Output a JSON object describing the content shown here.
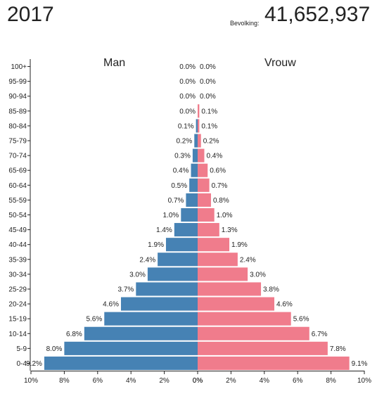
{
  "header": {
    "year": "2017",
    "population_label": "Bevolking:",
    "population_value": "41,652,937"
  },
  "colors": {
    "male": "#4682b4",
    "female": "#f07c8c",
    "axis": "#222222"
  },
  "chart_data": {
    "type": "bar",
    "orientation": "horizontal-population-pyramid",
    "categories": [
      "0-4",
      "5-9",
      "10-14",
      "15-19",
      "20-24",
      "25-29",
      "30-34",
      "35-39",
      "40-44",
      "45-49",
      "50-54",
      "55-59",
      "60-64",
      "65-69",
      "70-74",
      "75-79",
      "80-84",
      "85-89",
      "90-94",
      "95-99",
      "100+"
    ],
    "series": [
      {
        "name": "Man",
        "side": "left",
        "values": [
          9.2,
          8.0,
          6.8,
          5.6,
          4.6,
          3.7,
          3.0,
          2.4,
          1.9,
          1.4,
          1.0,
          0.7,
          0.5,
          0.4,
          0.3,
          0.2,
          0.1,
          0.0,
          0.0,
          0.0,
          0.0
        ]
      },
      {
        "name": "Vrouw",
        "side": "right",
        "values": [
          9.1,
          7.8,
          6.7,
          5.6,
          4.6,
          3.8,
          3.0,
          2.4,
          1.9,
          1.3,
          1.0,
          0.8,
          0.7,
          0.6,
          0.4,
          0.2,
          0.1,
          0.1,
          0.0,
          0.0,
          0.0
        ]
      }
    ],
    "x_ticks_left": [
      "10%",
      "8%",
      "6%",
      "4%",
      "2%",
      "0%"
    ],
    "x_ticks_right": [
      "0%",
      "2%",
      "4%",
      "6%",
      "8%",
      "10%"
    ],
    "xlim": [
      0,
      10
    ],
    "value_suffix": "%",
    "grid": false
  }
}
